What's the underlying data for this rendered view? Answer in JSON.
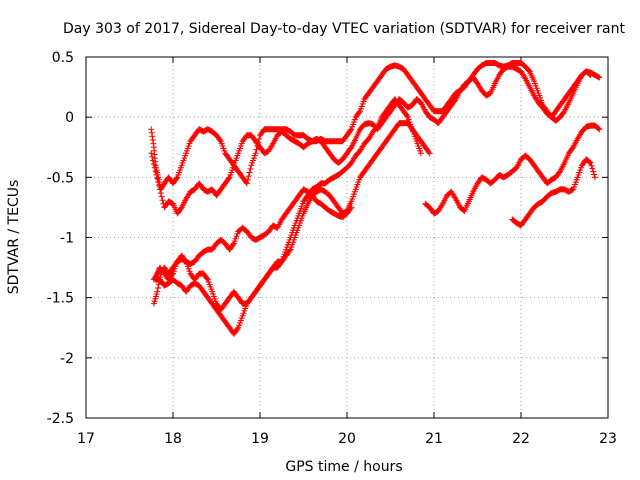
{
  "chart_data": {
    "type": "scatter",
    "title": "Day 303 of 2017, Sidereal Day-to-day VTEC variation (SDTVAR) for receiver rant",
    "xlabel": "GPS time / hours",
    "ylabel": "SDTVAR / TECUs",
    "xlim": [
      17,
      23
    ],
    "ylim": [
      -2.5,
      0.5
    ],
    "xticks": [
      17,
      18,
      19,
      20,
      21,
      22,
      23
    ],
    "xtick_labels": [
      "17",
      "18",
      "19",
      "20",
      "21",
      "22",
      "23"
    ],
    "yticks": [
      -2.5,
      -2,
      -1.5,
      -1,
      -0.5,
      0,
      0.5
    ],
    "ytick_labels": [
      "-2.5",
      "-2",
      "-1.5",
      "-1",
      "-0.5",
      "0",
      "0.5"
    ],
    "grid": true,
    "marker": "+",
    "color": "#ff0000",
    "series": [
      {
        "name": "track-1",
        "x": [
          17.75,
          17.78,
          17.8,
          17.83,
          17.86,
          17.9,
          17.95,
          18.0,
          18.05,
          18.1,
          18.15,
          18.2,
          18.25,
          18.3,
          18.35,
          18.4,
          18.45,
          18.5,
          18.55,
          18.6,
          18.65,
          18.7,
          18.75,
          18.8,
          18.85,
          18.9,
          18.95,
          19.0,
          19.05,
          19.1,
          19.15,
          19.2,
          19.25,
          19.3,
          19.35,
          19.4,
          19.45,
          19.5,
          19.55,
          19.6,
          19.65,
          19.7,
          19.75,
          19.8,
          19.85,
          19.9,
          19.95,
          20.0,
          20.05,
          20.1,
          20.15,
          20.2,
          20.25,
          20.3,
          20.35,
          20.4,
          20.45,
          20.5,
          20.55,
          20.6,
          20.65,
          20.7,
          20.75,
          20.8,
          20.85,
          20.9,
          20.95,
          21.0,
          21.05,
          21.1,
          21.15,
          21.2,
          21.25,
          21.3,
          21.35,
          21.4,
          21.45,
          21.5,
          21.55,
          21.6,
          21.65,
          21.7,
          21.75,
          21.8,
          21.85,
          21.9,
          21.95,
          22.0,
          22.05,
          22.1,
          22.15,
          22.2,
          22.25,
          22.3,
          22.35,
          22.4,
          22.45,
          22.5,
          22.55,
          22.6,
          22.65,
          22.7,
          22.75,
          22.8,
          22.85,
          22.9
        ],
        "y": [
          -0.1,
          -0.25,
          -0.4,
          -0.5,
          -0.6,
          -0.55,
          -0.5,
          -0.55,
          -0.5,
          -0.4,
          -0.3,
          -0.2,
          -0.15,
          -0.1,
          -0.12,
          -0.1,
          -0.12,
          -0.15,
          -0.2,
          -0.3,
          -0.35,
          -0.4,
          -0.45,
          -0.5,
          -0.55,
          -0.4,
          -0.3,
          -0.15,
          -0.1,
          -0.1,
          -0.1,
          -0.1,
          -0.1,
          -0.1,
          -0.12,
          -0.15,
          -0.15,
          -0.15,
          -0.18,
          -0.2,
          -0.2,
          -0.18,
          -0.2,
          -0.2,
          -0.2,
          -0.2,
          -0.2,
          -0.15,
          -0.1,
          0.0,
          0.05,
          0.15,
          0.2,
          0.25,
          0.3,
          0.35,
          0.4,
          0.42,
          0.43,
          0.42,
          0.4,
          0.35,
          0.3,
          0.25,
          0.2,
          0.15,
          0.1,
          0.05,
          0.05,
          0.05,
          0.1,
          0.15,
          0.2,
          0.22,
          0.25,
          0.3,
          0.35,
          0.4,
          0.43,
          0.45,
          0.45,
          0.45,
          0.43,
          0.42,
          0.43,
          0.45,
          0.45,
          0.45,
          0.42,
          0.38,
          0.3,
          0.2,
          0.1,
          0.05,
          0.0,
          0.05,
          0.1,
          0.15,
          0.2,
          0.25,
          0.3,
          0.35,
          0.38,
          0.37,
          0.35,
          0.33
        ]
      },
      {
        "name": "track-2",
        "x": [
          17.75,
          17.8,
          17.85,
          17.9,
          17.95,
          18.0,
          18.05,
          18.1,
          18.15,
          18.2,
          18.25,
          18.3,
          18.35,
          18.4,
          18.45,
          18.5,
          18.55,
          18.6,
          18.65,
          18.7,
          18.75,
          18.8,
          18.85,
          18.9,
          18.95,
          19.0,
          19.05,
          19.1,
          19.15,
          19.2,
          19.25,
          19.3,
          19.35,
          19.4,
          19.45,
          19.5,
          19.55,
          19.6,
          19.65,
          19.7,
          19.75,
          19.8,
          19.85,
          19.9,
          19.95,
          20.0,
          20.05,
          20.1,
          20.15,
          20.2,
          20.25,
          20.3,
          20.35,
          20.4,
          20.45,
          20.5,
          20.55,
          20.6,
          20.65,
          20.7,
          20.75,
          20.8,
          20.85,
          20.9,
          20.95,
          21.0,
          21.05,
          21.1,
          21.15,
          21.2,
          21.25,
          21.3,
          21.35,
          21.4,
          21.45,
          21.5,
          21.55,
          21.6,
          21.65,
          21.7,
          21.75,
          21.8,
          21.85,
          21.9,
          21.95,
          22.0,
          22.05,
          22.1,
          22.15,
          22.2,
          22.25,
          22.3,
          22.35,
          22.4,
          22.45,
          22.5,
          22.55,
          22.6,
          22.65,
          22.7,
          22.75,
          22.8
        ],
        "y": [
          -0.3,
          -0.45,
          -0.6,
          -0.75,
          -0.7,
          -0.72,
          -0.8,
          -0.75,
          -0.68,
          -0.62,
          -0.6,
          -0.55,
          -0.6,
          -0.62,
          -0.6,
          -0.65,
          -0.6,
          -0.55,
          -0.5,
          -0.4,
          -0.3,
          -0.2,
          -0.15,
          -0.15,
          -0.2,
          -0.25,
          -0.3,
          -0.28,
          -0.22,
          -0.15,
          -0.12,
          -0.15,
          -0.18,
          -0.2,
          -0.22,
          -0.25,
          -0.22,
          -0.2,
          -0.18,
          -0.2,
          -0.25,
          -0.3,
          -0.35,
          -0.38,
          -0.35,
          -0.3,
          -0.25,
          -0.18,
          -0.1,
          -0.06,
          -0.05,
          -0.06,
          -0.1,
          -0.05,
          0.0,
          0.05,
          0.1,
          0.15,
          0.12,
          0.08,
          0.1,
          0.15,
          0.12,
          0.05,
          0.0,
          -0.02,
          -0.05,
          0.0,
          0.05,
          0.1,
          0.15,
          0.22,
          0.27,
          0.3,
          0.33,
          0.28,
          0.22,
          0.18,
          0.2,
          0.28,
          0.35,
          0.4,
          0.42,
          0.42,
          0.4,
          0.38,
          0.32,
          0.25,
          0.18,
          0.12,
          0.08,
          0.03,
          0.0,
          -0.03,
          0.0,
          0.05,
          0.12,
          0.2,
          0.28,
          0.35,
          0.38,
          0.35
        ]
      },
      {
        "name": "track-3",
        "x": [
          17.78,
          17.82,
          17.85,
          17.9,
          17.95,
          18.0,
          18.05,
          18.1,
          18.15,
          18.2,
          18.25,
          18.3,
          18.35,
          18.4,
          18.45,
          18.5,
          18.55,
          18.6,
          18.65,
          18.7,
          18.75,
          18.8,
          18.85,
          18.9,
          18.95,
          19.0,
          19.05,
          19.1,
          19.15,
          19.2,
          19.25,
          19.3,
          19.35,
          19.4,
          19.45,
          19.5,
          19.55,
          19.6,
          19.65,
          19.7,
          19.75,
          19.8,
          19.85,
          19.9,
          19.95,
          20.0,
          20.05,
          20.1,
          20.15,
          20.2,
          20.25,
          20.3,
          20.35,
          20.4,
          20.45,
          20.5,
          20.55,
          20.6,
          20.65,
          20.7,
          20.75,
          20.8,
          20.85,
          20.9,
          20.95
        ],
        "y": [
          -1.35,
          -1.3,
          -1.25,
          -1.3,
          -1.35,
          -1.3,
          -1.2,
          -1.15,
          -1.2,
          -1.3,
          -1.35,
          -1.3,
          -1.3,
          -1.35,
          -1.45,
          -1.55,
          -1.6,
          -1.55,
          -1.5,
          -1.45,
          -1.5,
          -1.55,
          -1.55,
          -1.5,
          -1.45,
          -1.4,
          -1.35,
          -1.3,
          -1.25,
          -1.2,
          -1.2,
          -1.15,
          -1.1,
          -1.0,
          -0.9,
          -0.8,
          -0.72,
          -0.65,
          -0.62,
          -0.6,
          -0.62,
          -0.65,
          -0.7,
          -0.75,
          -0.8,
          -0.78,
          -0.7,
          -0.6,
          -0.5,
          -0.45,
          -0.4,
          -0.35,
          -0.3,
          -0.25,
          -0.2,
          -0.15,
          -0.1,
          -0.05,
          -0.05,
          -0.05,
          -0.1,
          -0.15,
          -0.2,
          -0.25,
          -0.3
        ]
      },
      {
        "name": "track-4",
        "x": [
          17.8,
          17.85,
          17.9,
          17.95,
          18.0,
          18.05,
          18.1,
          18.15,
          18.2,
          18.25,
          18.3,
          18.35,
          18.4,
          18.45,
          18.5,
          18.55,
          18.6,
          18.65,
          18.7,
          18.75,
          18.8,
          18.85,
          18.9,
          18.95,
          19.0,
          19.05,
          19.1,
          19.15,
          19.2,
          19.25,
          19.3,
          19.35,
          19.4,
          19.45,
          19.5,
          19.55,
          19.6,
          19.65,
          19.7,
          19.75,
          19.8,
          19.85,
          19.9,
          19.95,
          20.0,
          20.05,
          20.1,
          20.15,
          20.2,
          20.25,
          20.3,
          20.35,
          20.4,
          20.45,
          20.5,
          20.55,
          20.6,
          20.65,
          20.7,
          20.75,
          20.8,
          20.85
        ],
        "y": [
          -1.35,
          -1.35,
          -1.4,
          -1.38,
          -1.35,
          -1.38,
          -1.4,
          -1.45,
          -1.4,
          -1.38,
          -1.4,
          -1.45,
          -1.5,
          -1.55,
          -1.6,
          -1.65,
          -1.7,
          -1.75,
          -1.8,
          -1.75,
          -1.65,
          -1.55,
          -1.5,
          -1.45,
          -1.4,
          -1.35,
          -1.3,
          -1.25,
          -1.25,
          -1.2,
          -1.1,
          -1.0,
          -0.9,
          -0.8,
          -0.7,
          -0.65,
          -0.6,
          -0.58,
          -0.55,
          -0.55,
          -0.52,
          -0.5,
          -0.48,
          -0.45,
          -0.42,
          -0.38,
          -0.32,
          -0.28,
          -0.22,
          -0.18,
          -0.12,
          -0.08,
          0.0,
          0.05,
          0.1,
          0.15,
          0.1,
          0.05,
          0.0,
          -0.1,
          -0.2,
          -0.3
        ]
      },
      {
        "name": "track-5",
        "x": [
          17.78,
          17.82,
          17.86,
          17.9,
          17.95,
          18.0,
          18.05,
          18.1,
          18.15,
          18.2,
          18.25,
          18.3,
          18.35,
          18.4,
          18.45,
          18.5,
          18.55,
          18.6,
          18.65,
          18.7,
          18.75,
          18.8,
          18.85,
          18.9,
          18.95,
          19.0,
          19.05,
          19.1,
          19.15,
          19.2,
          19.25,
          19.3,
          19.35,
          19.4,
          19.45,
          19.5,
          19.55,
          19.6,
          19.65,
          19.7,
          19.75,
          19.8,
          19.85,
          19.9,
          19.95,
          20.0,
          20.05
        ],
        "y": [
          -1.55,
          -1.45,
          -1.3,
          -1.25,
          -1.3,
          -1.25,
          -1.2,
          -1.18,
          -1.2,
          -1.22,
          -1.2,
          -1.15,
          -1.12,
          -1.1,
          -1.1,
          -1.05,
          -1.02,
          -1.05,
          -1.1,
          -1.05,
          -0.95,
          -0.92,
          -0.95,
          -1.0,
          -1.02,
          -1.0,
          -0.98,
          -0.95,
          -0.9,
          -0.92,
          -0.85,
          -0.8,
          -0.75,
          -0.7,
          -0.65,
          -0.6,
          -0.62,
          -0.65,
          -0.7,
          -0.72,
          -0.75,
          -0.78,
          -0.8,
          -0.82,
          -0.83,
          -0.8,
          -0.75
        ]
      },
      {
        "name": "track-6",
        "x": [
          20.9,
          20.95,
          21.0,
          21.05,
          21.1,
          21.15,
          21.2,
          21.25,
          21.3,
          21.35,
          21.4,
          21.45,
          21.5,
          21.55,
          21.6,
          21.65,
          21.7,
          21.75,
          21.8,
          21.85,
          21.9,
          21.95,
          22.0,
          22.05,
          22.1,
          22.15,
          22.2,
          22.25,
          22.3,
          22.35,
          22.4,
          22.45,
          22.5,
          22.55,
          22.6,
          22.65,
          22.7,
          22.75,
          22.8,
          22.85,
          22.9
        ],
        "y": [
          -0.72,
          -0.75,
          -0.8,
          -0.78,
          -0.72,
          -0.65,
          -0.62,
          -0.68,
          -0.75,
          -0.78,
          -0.7,
          -0.62,
          -0.55,
          -0.5,
          -0.52,
          -0.55,
          -0.52,
          -0.48,
          -0.5,
          -0.48,
          -0.45,
          -0.42,
          -0.35,
          -0.32,
          -0.35,
          -0.4,
          -0.45,
          -0.5,
          -0.55,
          -0.52,
          -0.5,
          -0.45,
          -0.38,
          -0.3,
          -0.25,
          -0.18,
          -0.12,
          -0.08,
          -0.07,
          -0.07,
          -0.1
        ]
      },
      {
        "name": "track-7",
        "x": [
          21.9,
          21.95,
          22.0,
          22.05,
          22.1,
          22.15,
          22.2,
          22.25,
          22.3,
          22.35,
          22.4,
          22.45,
          22.5,
          22.55,
          22.6,
          22.65,
          22.7,
          22.75,
          22.8,
          22.85
        ],
        "y": [
          -0.85,
          -0.88,
          -0.9,
          -0.85,
          -0.8,
          -0.75,
          -0.72,
          -0.7,
          -0.66,
          -0.63,
          -0.62,
          -0.6,
          -0.6,
          -0.62,
          -0.6,
          -0.5,
          -0.4,
          -0.35,
          -0.38,
          -0.5
        ]
      }
    ]
  }
}
